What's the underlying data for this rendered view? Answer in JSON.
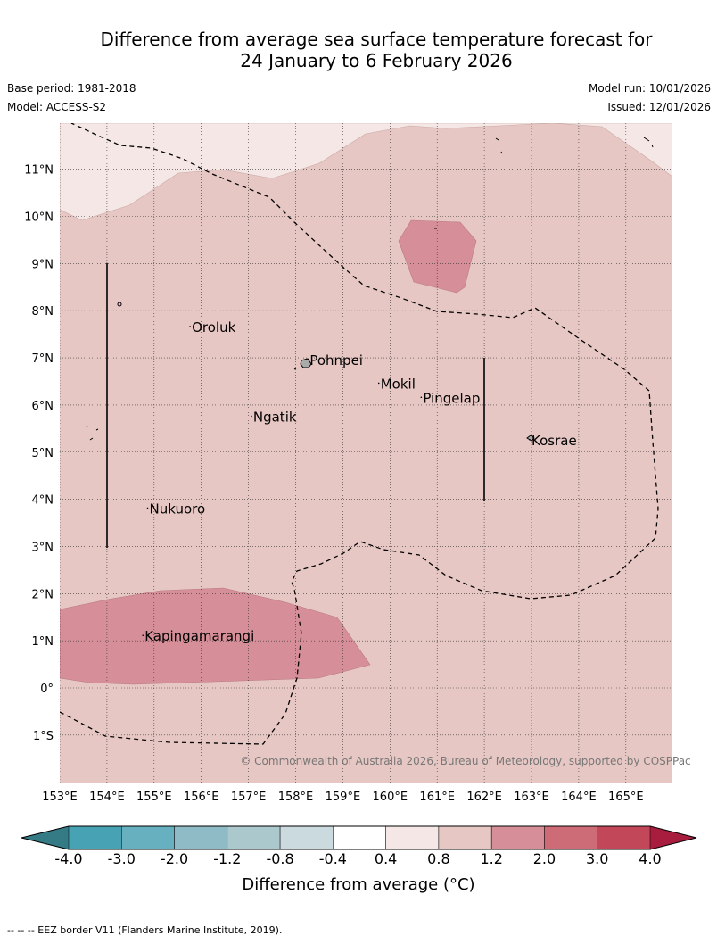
{
  "title_line1": "Difference from average sea surface temperature forecast for",
  "title_line2": "24 January to 6 February 2026",
  "base_period": "Base period: 1981-2018",
  "model": "Model: ACCESS-S2",
  "model_run": "Model run: 10/01/2026",
  "issued": "Issued: 12/01/2026",
  "copyright": "© Commonwealth of Australia 2026, Bureau of Meteorology, supported by COSPPac",
  "footnote": "--  --  -- EEZ border V11 (Flanders Marine Institute, 2019).",
  "lon_ticks": [
    "153°E",
    "154°E",
    "155°E",
    "156°E",
    "157°E",
    "158°E",
    "159°E",
    "160°E",
    "161°E",
    "162°E",
    "163°E",
    "164°E",
    "165°E"
  ],
  "lat_ticks": [
    "11°N",
    "10°N",
    "9°N",
    "8°N",
    "7°N",
    "6°N",
    "5°N",
    "4°N",
    "3°N",
    "2°N",
    "1°N",
    "0°",
    "1°S"
  ],
  "places": [
    {
      "name": "Oroluk",
      "lon": 155.8,
      "lat": 7.55
    },
    {
      "name": "Pohnpei",
      "lon": 158.3,
      "lat": 6.85
    },
    {
      "name": "Mokil",
      "lon": 159.8,
      "lat": 6.35
    },
    {
      "name": "Pingelap",
      "lon": 160.7,
      "lat": 6.05
    },
    {
      "name": "Ngatik",
      "lon": 157.1,
      "lat": 5.65
    },
    {
      "name": "Kosrae",
      "lon": 163.0,
      "lat": 5.15
    },
    {
      "name": "Nukuoro",
      "lon": 154.9,
      "lat": 3.7
    },
    {
      "name": "Kapingamarangi",
      "lon": 154.8,
      "lat": 1.0
    }
  ],
  "colorbar": {
    "label": "Difference from average (°C)",
    "tick_labels": [
      "-4.0",
      "-3.0",
      "-2.0",
      "-1.2",
      "-0.8",
      "-0.4",
      "0.4",
      "0.8",
      "1.2",
      "2.0",
      "3.0",
      "4.0"
    ],
    "colors": [
      "#47a3b3",
      "#67b0bf",
      "#8ebbc6",
      "#abc8cc",
      "#cbdadf",
      "#ffffff",
      "#f5e7e5",
      "#e7c7c3",
      "#d68f98",
      "#cd6b76",
      "#c24758"
    ],
    "under_color": "#357b86",
    "over_color": "#a81c3d"
  },
  "fill_colors": {
    "background": "#e7c7c3",
    "lighter": "#f5e7e5",
    "warmer": "#d68f98"
  }
}
